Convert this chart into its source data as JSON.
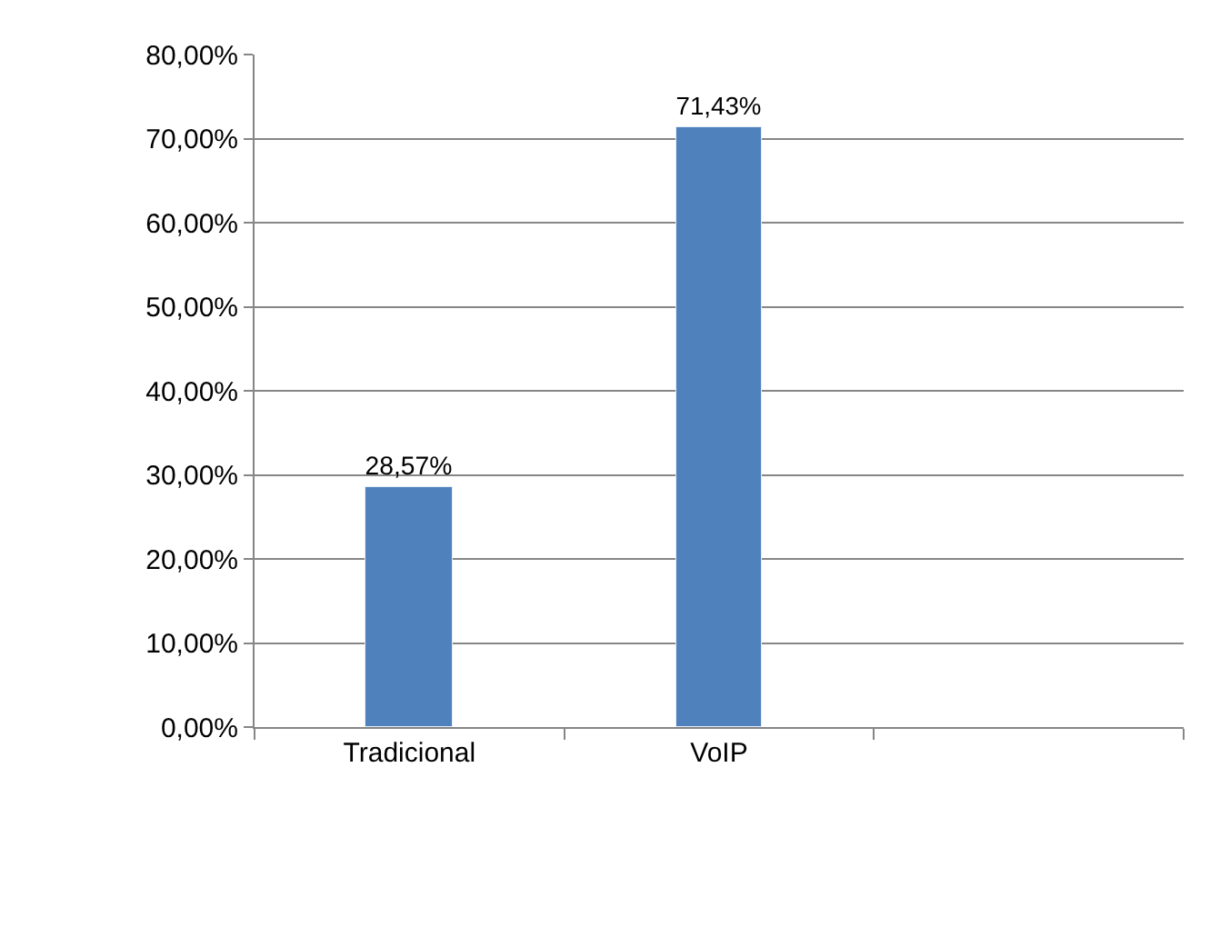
{
  "chart_data": {
    "type": "bar",
    "categories": [
      "Tradicional",
      "VoIP",
      null
    ],
    "values": [
      28.57,
      71.43,
      null
    ],
    "value_labels": [
      "28,57%",
      "71,43%",
      null
    ],
    "color": "#4f81bd",
    "ylim": [
      0,
      80
    ],
    "yticks": [
      {
        "value": 0,
        "label": "0,00%"
      },
      {
        "value": 10,
        "label": "10,00%"
      },
      {
        "value": 20,
        "label": "20,00%"
      },
      {
        "value": 30,
        "label": "30,00%"
      },
      {
        "value": 40,
        "label": "40,00%"
      },
      {
        "value": 50,
        "label": "50,00%"
      },
      {
        "value": 60,
        "label": "60,00%"
      },
      {
        "value": 70,
        "label": "70,00%"
      },
      {
        "value": 80,
        "label": "80,00%"
      }
    ],
    "grid": "y",
    "legend": false
  }
}
